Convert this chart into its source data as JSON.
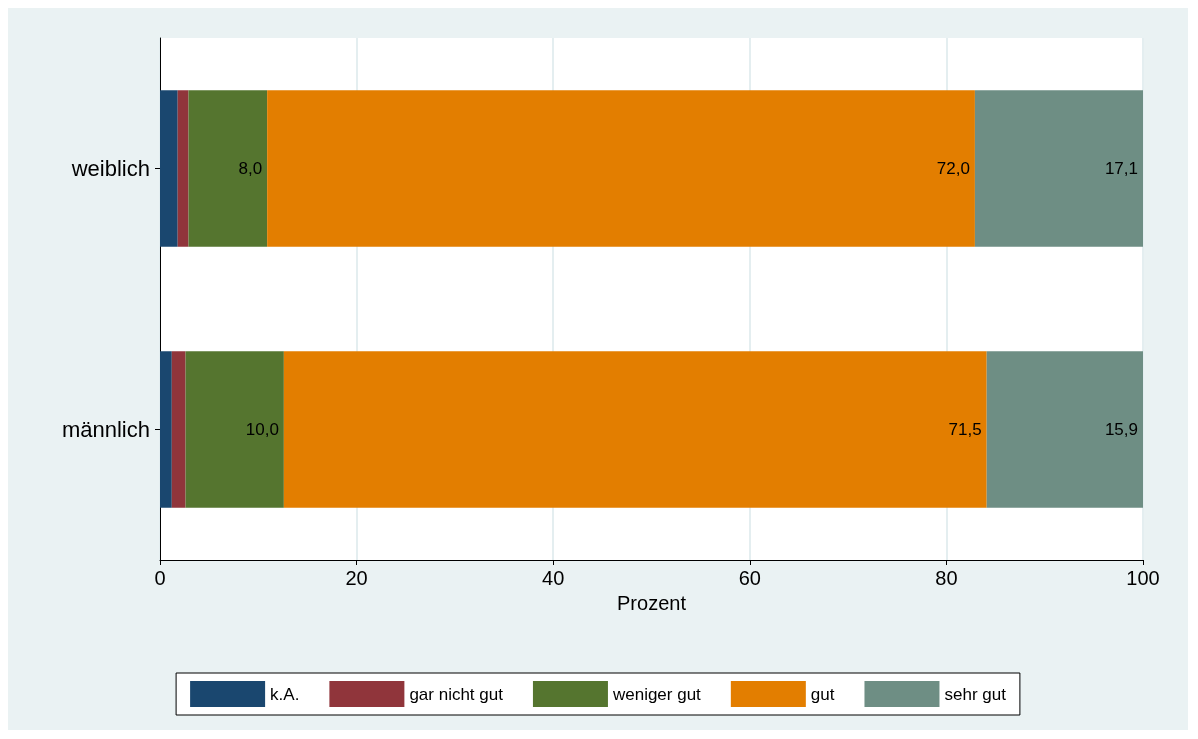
{
  "chart_data": {
    "type": "bar",
    "orientation": "horizontal",
    "stacked": true,
    "categories": [
      "weiblich",
      "männlich"
    ],
    "xlabel": "Prozent",
    "xlim": [
      0,
      100
    ],
    "xticks": [
      0,
      20,
      40,
      60,
      80,
      100
    ],
    "grid": "x",
    "legend": "bottom",
    "series": [
      {
        "name": "k.A.",
        "color": "#1a476f",
        "values": [
          1.8,
          1.2
        ],
        "value_labels": [
          null,
          null
        ]
      },
      {
        "name": "gar nicht gut",
        "color": "#90353b",
        "values": [
          1.1,
          1.4
        ],
        "value_labels": [
          null,
          null
        ]
      },
      {
        "name": "weniger gut",
        "color": "#55752f",
        "values": [
          8.0,
          10.0
        ],
        "value_labels": [
          "8,0",
          "10,0"
        ]
      },
      {
        "name": "gut",
        "color": "#e37e00",
        "values": [
          72.0,
          71.5
        ],
        "value_labels": [
          "72,0",
          "71,5"
        ]
      },
      {
        "name": "sehr gut",
        "color": "#6e8e84",
        "values": [
          17.1,
          15.9
        ],
        "value_labels": [
          "17,1",
          "15,9"
        ]
      }
    ]
  }
}
